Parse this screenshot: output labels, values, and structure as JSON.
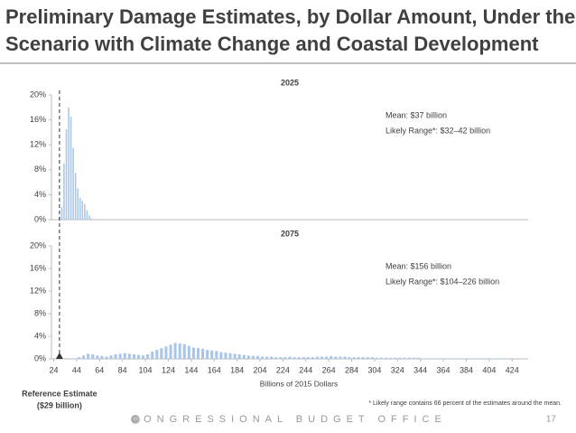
{
  "slide": {
    "title": [
      "Preliminary Damage Estimates, by Dollar Amount, Under the",
      "Scenario with Climate Change and Coastal Development"
    ],
    "footnote": "* Likely range contains 66 percent of the estimates around the mean.",
    "footer": "CONGRESSIONAL BUDGET OFFICE",
    "page": "17"
  },
  "chart_data": [
    {
      "type": "histogram",
      "title": "2025",
      "color": "#a9c6e8",
      "bins": [
        28,
        30,
        32,
        34,
        36,
        38,
        40,
        42,
        44,
        46,
        48,
        50,
        52,
        54,
        56,
        58
      ],
      "values": [
        0.5,
        2,
        9,
        14.5,
        18,
        16.5,
        11.5,
        7.5,
        5,
        3.5,
        3,
        2.5,
        1.5,
        0.7,
        0.2
      ],
      "xlim": [
        22,
        438
      ],
      "ylim": [
        0,
        20
      ],
      "yticks": [
        {
          "value": 0,
          "label": "0%"
        },
        {
          "value": 4,
          "label": "4%"
        },
        {
          "value": 8,
          "label": "8%"
        },
        {
          "value": 12,
          "label": "12%"
        },
        {
          "value": 16,
          "label": "16%"
        },
        {
          "value": 20,
          "label": "20%"
        }
      ],
      "annotations": [
        "Mean: $37 billion",
        "Likely Range*: $32–42 billion"
      ]
    },
    {
      "type": "histogram",
      "title": "2075",
      "color": "#a9c6e8",
      "x_label": "Billions of 2015 Dollars",
      "bins": [
        44,
        48,
        52,
        56,
        60,
        64,
        68,
        72,
        76,
        80,
        84,
        88,
        92,
        96,
        100,
        104,
        108,
        112,
        116,
        120,
        124,
        128,
        132,
        136,
        140,
        144,
        148,
        152,
        156,
        160,
        164,
        168,
        172,
        176,
        180,
        184,
        188,
        192,
        196,
        200,
        204,
        208,
        212,
        216,
        220,
        224,
        228,
        232,
        236,
        240,
        244,
        248,
        252,
        256,
        260,
        264,
        268,
        272,
        276,
        280,
        284,
        288,
        292,
        296,
        300,
        304,
        308,
        312,
        316,
        320,
        324,
        328,
        332,
        336,
        340,
        344,
        348,
        352,
        356,
        360,
        364,
        368,
        372,
        376,
        380,
        384,
        388,
        392,
        396,
        400,
        404,
        408,
        412,
        416,
        420,
        424
      ],
      "values": [
        0.3,
        0.6,
        0.9,
        0.8,
        0.6,
        0.5,
        0.4,
        0.6,
        0.8,
        0.9,
        1.0,
        0.9,
        0.8,
        0.7,
        0.6,
        0.8,
        1.3,
        1.6,
        1.9,
        2.2,
        2.5,
        2.8,
        2.7,
        2.6,
        2.3,
        2.0,
        1.9,
        1.8,
        1.6,
        1.5,
        1.4,
        1.2,
        1.1,
        1.0,
        0.9,
        0.8,
        0.7,
        0.6,
        0.5,
        0.5,
        0.4,
        0.4,
        0.4,
        0.3,
        0.3,
        0.3,
        0.4,
        0.3,
        0.3,
        0.3,
        0.3,
        0.3,
        0.4,
        0.4,
        0.4,
        0.5,
        0.4,
        0.4,
        0.4,
        0.3,
        0.3,
        0.3,
        0.3,
        0.3,
        0.3,
        0.2,
        0.2,
        0.2,
        0.2,
        0.2,
        0.2,
        0.2,
        0.2,
        0.2,
        0.2,
        0.1,
        0.1,
        0.1,
        0.1,
        0.1,
        0.1,
        0.1,
        0.1,
        0.1,
        0.1,
        0.1,
        0.1,
        0.1,
        0.1,
        0.1,
        0.1,
        0.1,
        0.1,
        0.1,
        0.1
      ],
      "xlim": [
        22,
        438
      ],
      "xticks": [
        24,
        44,
        64,
        84,
        104,
        124,
        144,
        164,
        184,
        204,
        224,
        244,
        264,
        284,
        304,
        324,
        344,
        364,
        384,
        404,
        424
      ],
      "ylim": [
        0,
        20
      ],
      "yticks": [
        {
          "value": 0,
          "label": "0%"
        },
        {
          "value": 4,
          "label": "4%"
        },
        {
          "value": 8,
          "label": "8%"
        },
        {
          "value": 12,
          "label": "12%"
        },
        {
          "value": 16,
          "label": "16%"
        },
        {
          "value": 20,
          "label": "20%"
        }
      ],
      "annotations": [
        "Mean: $156 billion",
        "Likely Range*: $104–226 billion"
      ],
      "reference_line": {
        "value": 29,
        "label": [
          "Reference Estimate",
          "($29 billion)"
        ]
      }
    }
  ]
}
